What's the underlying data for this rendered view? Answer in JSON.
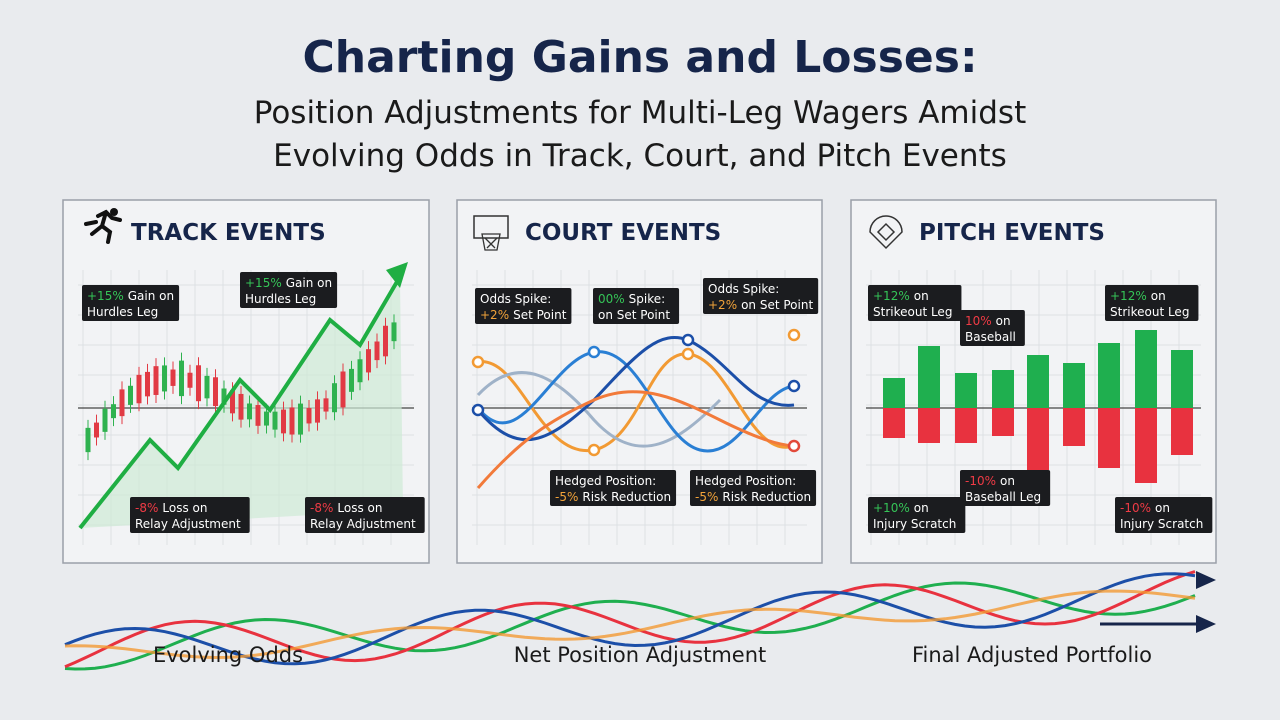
{
  "header": {
    "title": "Charting Gains and Losses:",
    "subtitle_lines": [
      "Position Adjustments for Multi-Leg Wagers Amidst",
      "Evolving Odds in Track, Court, and Pitch Events"
    ]
  },
  "panels": [
    {
      "title": "TRACK EVENTS",
      "annotations": [
        {
          "line1": {
            "tag": "+15%",
            "text": "Gain on"
          },
          "line2": {
            "text": "Hurdles Leg"
          },
          "color": "#35c457"
        },
        {
          "line1": {
            "tag": "+15%",
            "text": "Gain on"
          },
          "line2": {
            "text": "Hurdles Leg"
          },
          "color": "#35c457"
        },
        {
          "line1": {
            "tag": "-8%",
            "text": "Loss on"
          },
          "line2": {
            "text": "Relay Adjustment"
          },
          "color": "#ef3b45"
        },
        {
          "line1": {
            "tag": "-8%",
            "text": "Loss on"
          },
          "line2": {
            "text": "Relay Adjustment"
          },
          "color": "#ef3b45"
        }
      ]
    },
    {
      "title": "COURT EVENTS",
      "annotations": [
        {
          "line1": {
            "text": "Odds Spike:"
          },
          "line2": {
            "tag": "+2%",
            "text": "Set Point"
          },
          "color": "#f2a33a"
        },
        {
          "line1": {
            "tag": "00%",
            "text": "Spike:"
          },
          "line2": {
            "text": "on Set Point"
          },
          "color": "#35c457"
        },
        {
          "line1": {
            "text": "Odds Spike:"
          },
          "line2": {
            "tag": "+2%",
            "text": "on Set Point"
          },
          "color": "#f2a33a"
        },
        {
          "line1": {
            "text": "Hedged Position:"
          },
          "line2": {
            "tag": "-5%",
            "text": "Risk Reduction"
          },
          "color": "#f2a33a"
        },
        {
          "line1": {
            "text": "Hedged Position:"
          },
          "line2": {
            "tag": "-5%",
            "text": "Risk Reduction"
          },
          "color": "#f2a33a"
        }
      ]
    },
    {
      "title": "PITCH EVENTS",
      "annotations": [
        {
          "line1": {
            "tag": "+12%",
            "text": "on"
          },
          "line2": {
            "text": "Strikeout Leg"
          },
          "color": "#35c457"
        },
        {
          "line1": {
            "tag": "10%",
            "text": "on"
          },
          "line2": {
            "text": "Baseball"
          },
          "color": "#ef3b45"
        },
        {
          "line1": {
            "tag": "+12%",
            "text": "on"
          },
          "line2": {
            "text": "Strikeout Leg"
          },
          "color": "#35c457"
        },
        {
          "line1": {
            "tag": "-10%",
            "text": "on"
          },
          "line2": {
            "text": "Baseball Leg"
          },
          "color": "#ef3b45"
        },
        {
          "line1": {
            "tag": "+10%",
            "text": "on"
          },
          "line2": {
            "text": "Injury Scratch"
          },
          "color": "#35c457"
        },
        {
          "line1": {
            "tag": "-10%",
            "text": "on"
          },
          "line2": {
            "text": "Injury Scratch"
          },
          "color": "#ef3b45"
        }
      ]
    }
  ],
  "footer": {
    "labels": [
      "Evolving Odds",
      "Net Position Adjustment",
      "Final Adjusted Portfolio"
    ]
  }
}
